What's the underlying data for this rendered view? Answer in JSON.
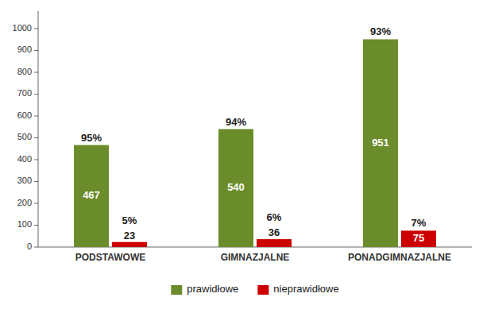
{
  "chart_data": {
    "type": "bar",
    "categories": [
      "PODSTAWOWE",
      "GIMNAZJALNE",
      "PONADGIMNAZJALNE"
    ],
    "series": [
      {
        "name": "prawidłowe",
        "color": "#6B8C2A",
        "values": [
          467,
          540,
          951
        ],
        "share_labels": [
          "95%",
          "94%",
          "93%"
        ]
      },
      {
        "name": "nieprawidłowe",
        "color": "#CC0000",
        "values": [
          23,
          36,
          75
        ],
        "share_labels": [
          "5%",
          "6%",
          "7%"
        ]
      }
    ],
    "ylim": [
      0,
      1080
    ],
    "yticks": [
      0,
      100,
      200,
      300,
      400,
      500,
      600,
      700,
      800,
      900,
      1000
    ],
    "grid": false,
    "legend": "bottom",
    "data_labels": true
  }
}
